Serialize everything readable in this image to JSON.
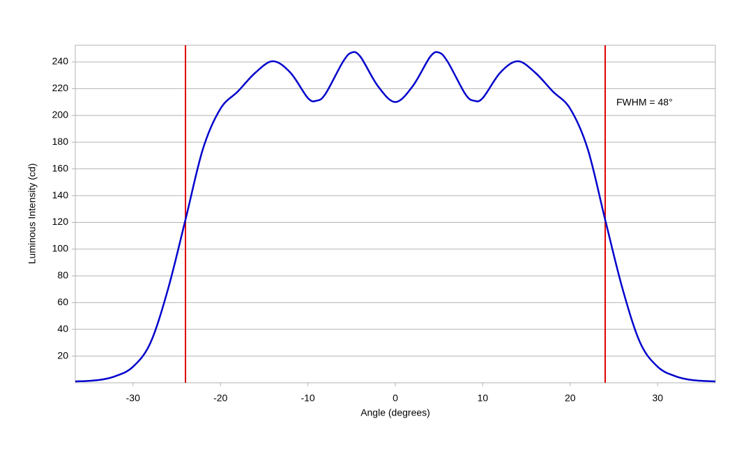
{
  "chart_data": {
    "type": "line",
    "x_label": "Angle (degrees)",
    "y_label": "Luminous Intensity (cd)",
    "annotation": "FWHM = 48°",
    "x": [
      -36.6,
      -34,
      -32,
      -30,
      -28,
      -26,
      -24,
      -22,
      -20,
      -18,
      -16,
      -14,
      -12,
      -10,
      -9,
      -8,
      -6,
      -5,
      -4,
      -2,
      0,
      2,
      4,
      5,
      6,
      8,
      9,
      10,
      12,
      14,
      16,
      18,
      20,
      22,
      24,
      26,
      28,
      30,
      32,
      34,
      36.6
    ],
    "series": [
      {
        "color": "#0000cc",
        "values": [
          1,
          2,
          5,
          12,
          30,
          70,
          122,
          175,
          205,
          218,
          232,
          240.5,
          232,
          213,
          211,
          216,
          240,
          247,
          244,
          222,
          210,
          222,
          244,
          247,
          240,
          216,
          211,
          213,
          232,
          240.5,
          232,
          218,
          205,
          175,
          122,
          70,
          30,
          12,
          5,
          2,
          1
        ]
      }
    ],
    "vlines": [
      -24,
      24
    ],
    "vline_color": "#e00000",
    "xlim": [
      -36.6,
      36.6
    ],
    "xticks": [
      -30,
      -20,
      -10,
      0,
      10,
      20,
      30
    ],
    "ylim": [
      0,
      252.5
    ],
    "yticks": [
      20,
      40,
      60,
      80,
      100,
      120,
      140,
      160,
      180,
      200,
      220,
      240
    ],
    "grid": true
  }
}
